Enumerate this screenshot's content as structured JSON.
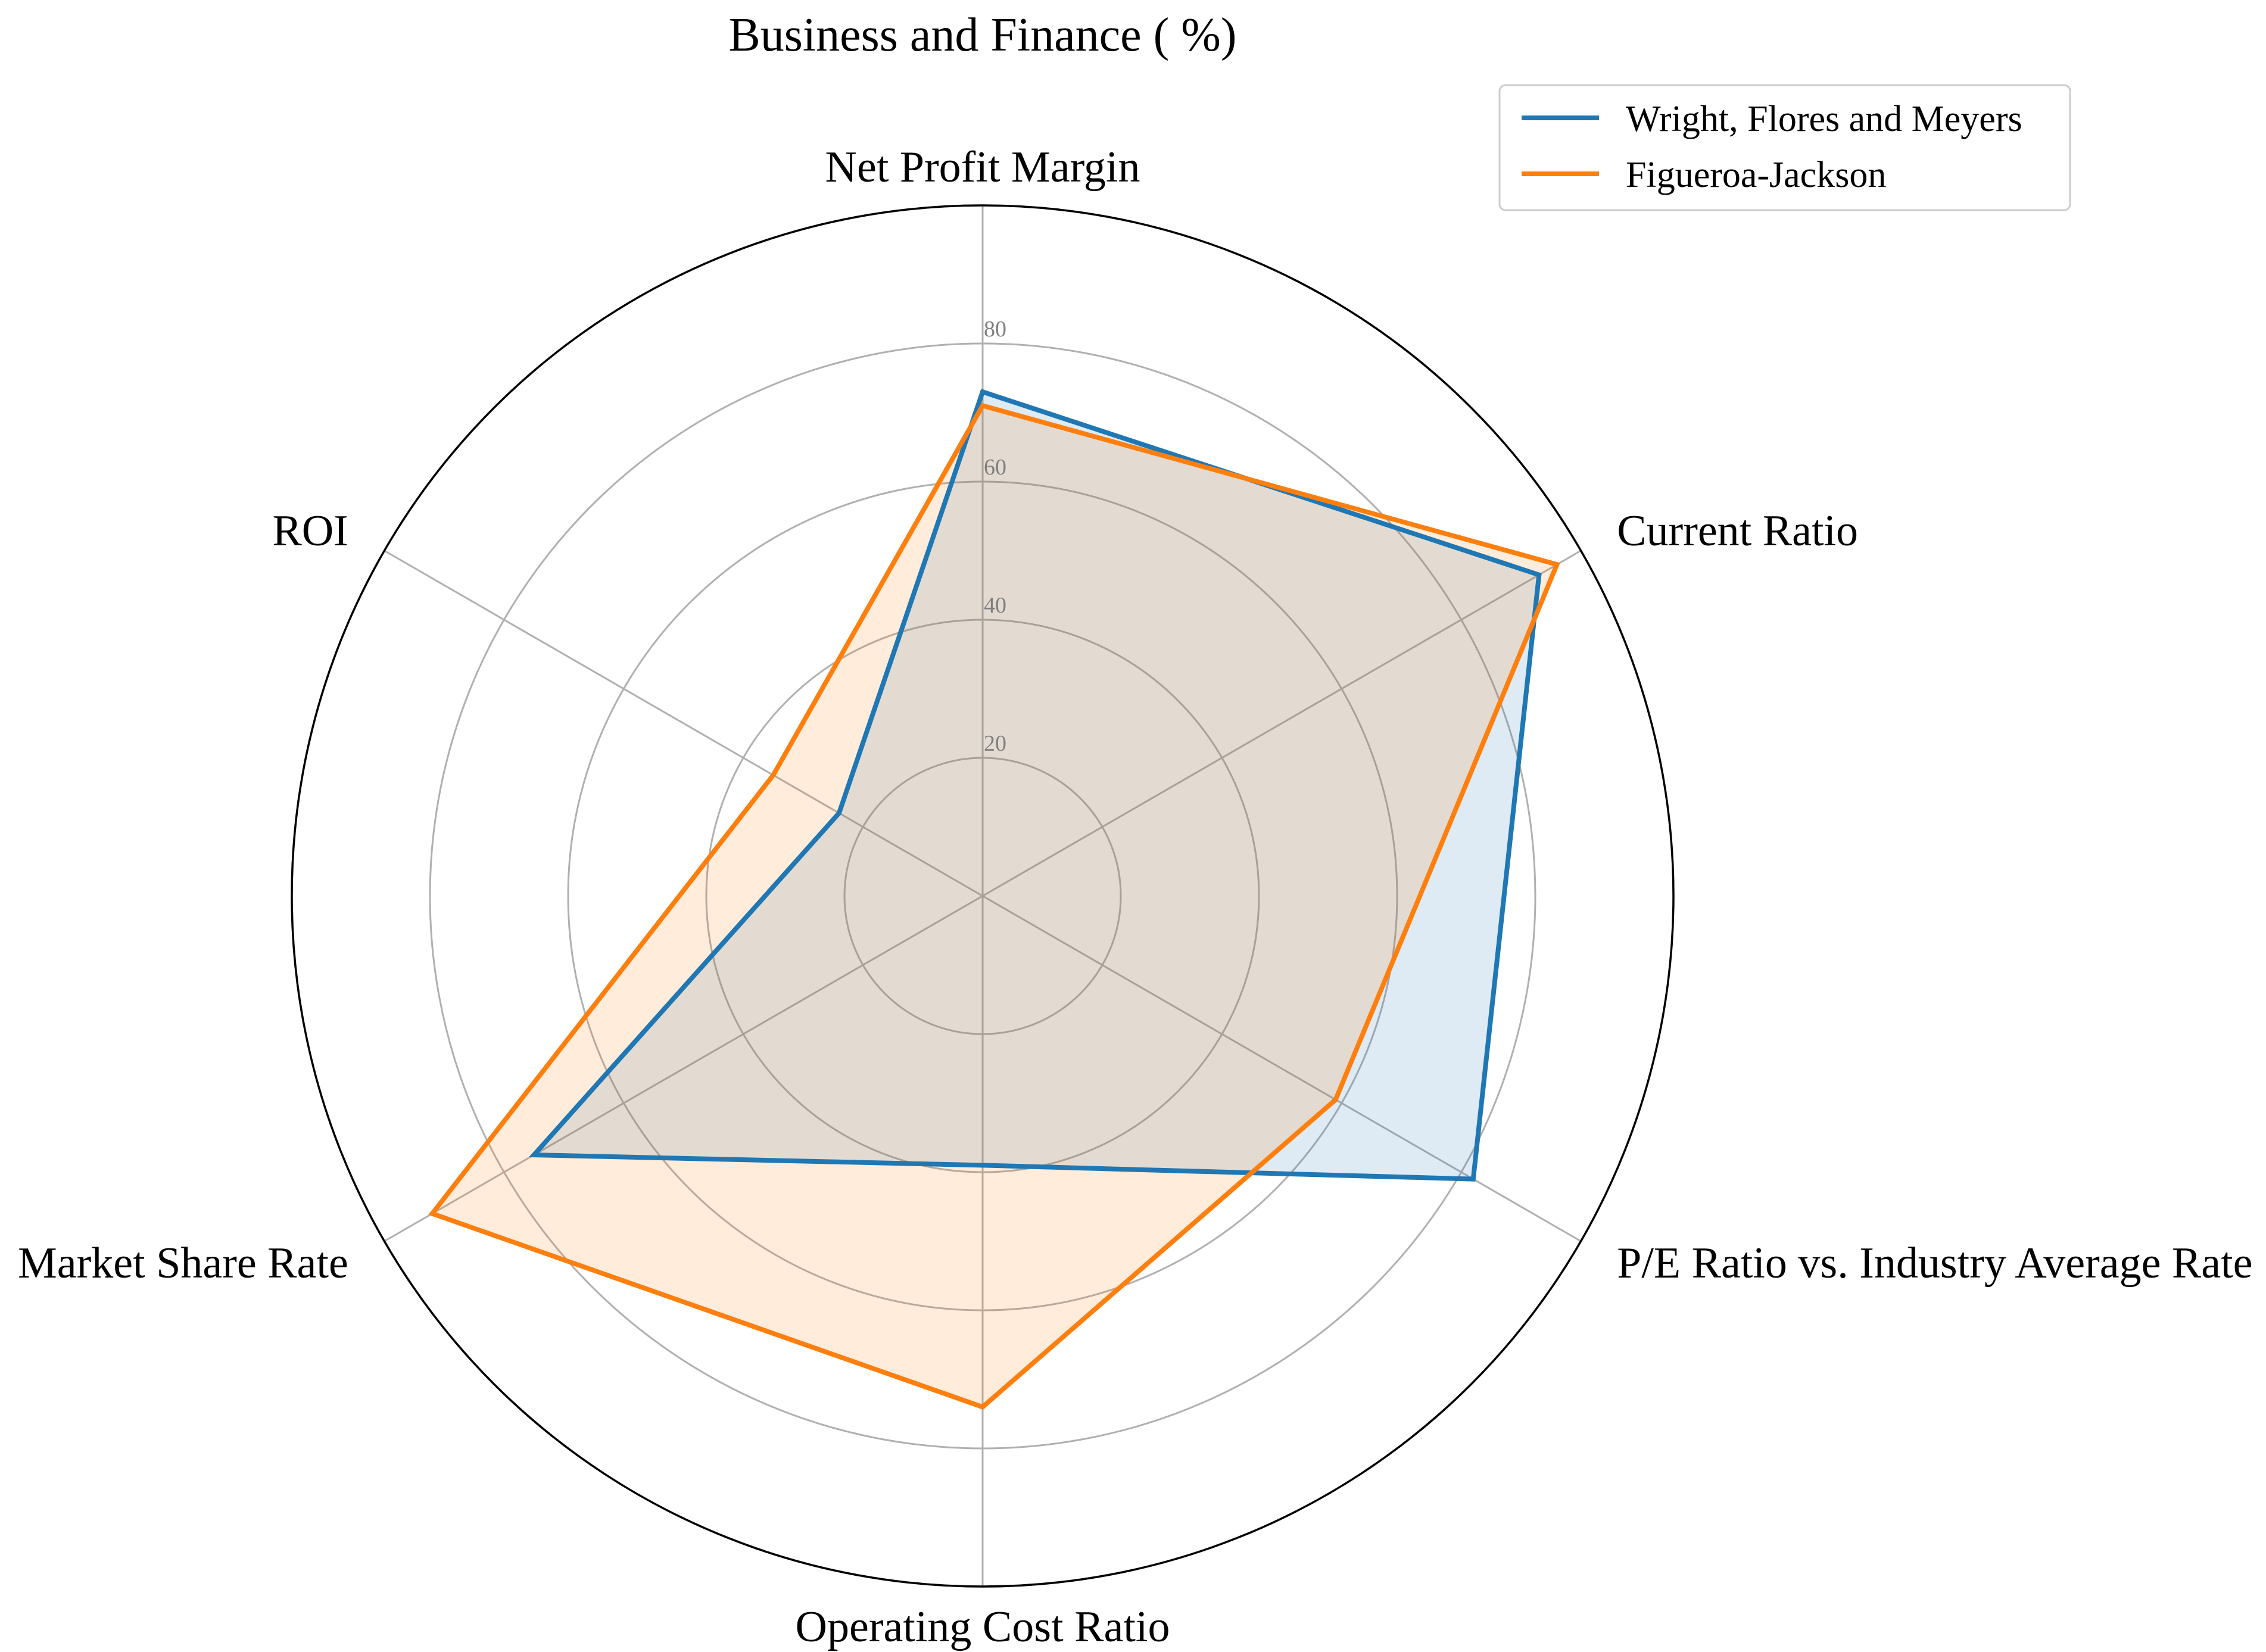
{
  "chart_data": {
    "type": "radar",
    "title": "Business and Finance ( %)",
    "axes": [
      "Net Profit Margin",
      "Current Ratio",
      "P/E Ratio vs. Industry Average Rate",
      "Operating Cost Ratio",
      "Market Share Rate",
      "ROI"
    ],
    "r_ticks": [
      20,
      40,
      60,
      80
    ],
    "r_range": [
      0,
      100
    ],
    "grid": true,
    "legend_position": "top-right",
    "series": [
      {
        "name": "Wright, Flores and Meyers",
        "color": "#1f77b4",
        "values": [
          73,
          93,
          82,
          39,
          75,
          24
        ]
      },
      {
        "name": "Figueroa-Jackson",
        "color": "#ff7f0e",
        "values": [
          71,
          96,
          59,
          74,
          92,
          35
        ]
      }
    ]
  }
}
